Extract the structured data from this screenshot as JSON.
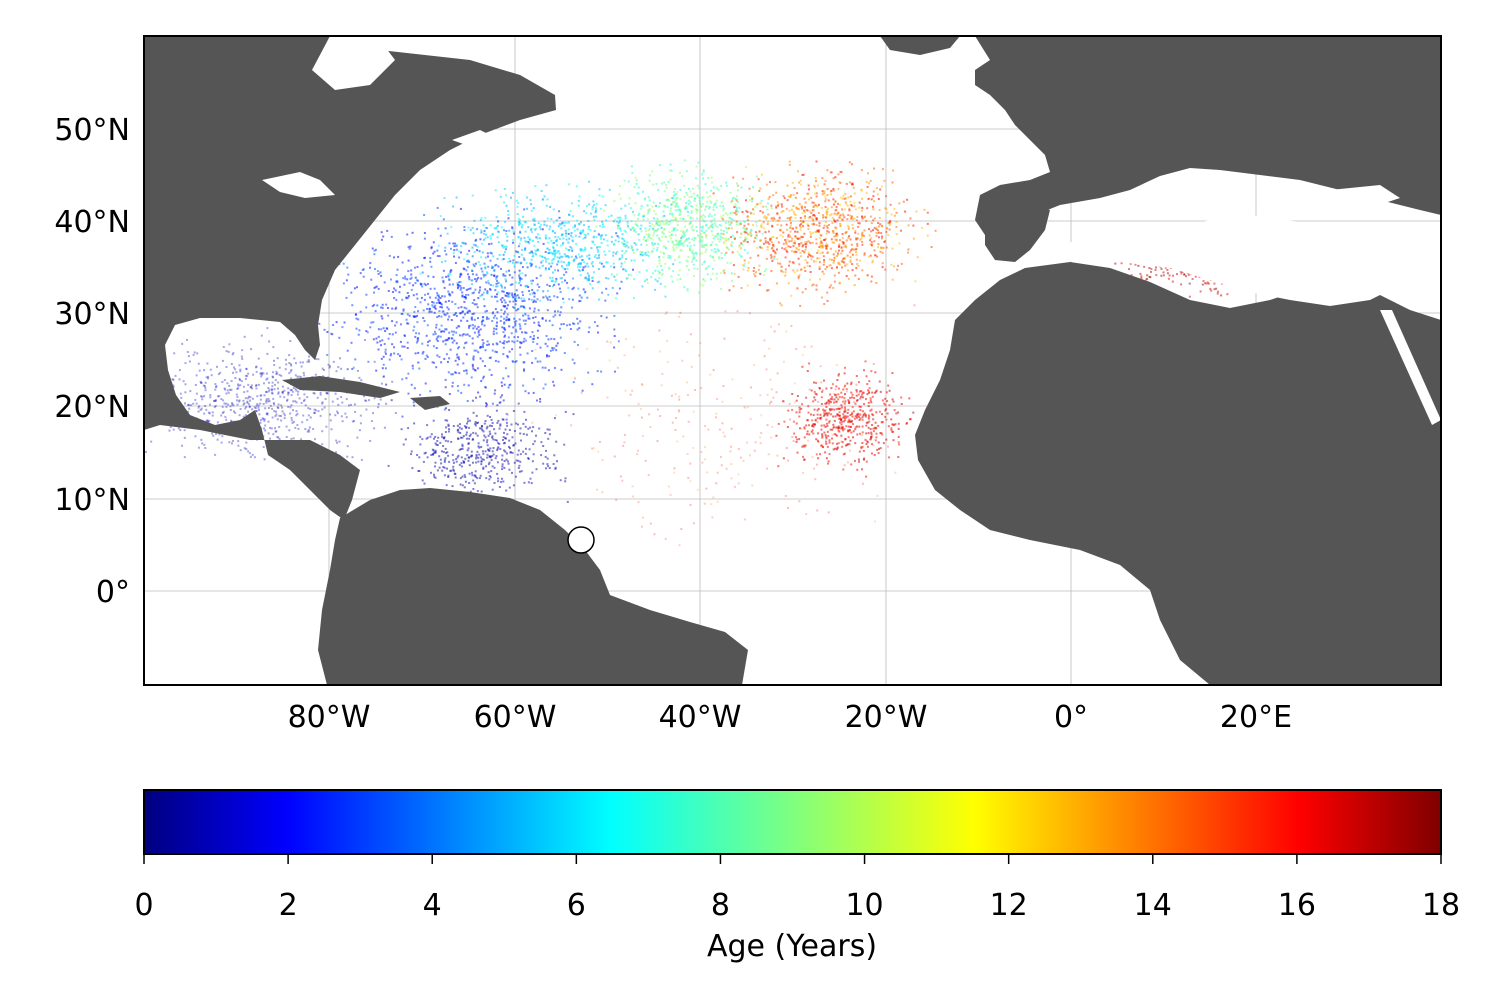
{
  "map": {
    "lat_labels": [
      "50°N",
      "40°N",
      "30°N",
      "20°N",
      "10°N",
      "0°"
    ],
    "lon_labels": [
      "80°W",
      "60°W",
      "40°W",
      "20°W",
      "0°",
      "20°E"
    ],
    "release_marker": "release-point-marker"
  },
  "colorbar": {
    "ticks": [
      "0",
      "2",
      "4",
      "6",
      "8",
      "10",
      "12",
      "14",
      "16",
      "18"
    ],
    "label": "Age (Years)",
    "range": [
      0,
      18
    ],
    "colormap": "jet",
    "stops": [
      "#00007f",
      "#0000ff",
      "#007fff",
      "#00ffff",
      "#7fff7f",
      "#ffff00",
      "#ff7f00",
      "#ff0000",
      "#7f0000"
    ]
  },
  "colors": {
    "land": "#555555",
    "ocean": "#ffffff",
    "grid": "#bbbbbb"
  }
}
